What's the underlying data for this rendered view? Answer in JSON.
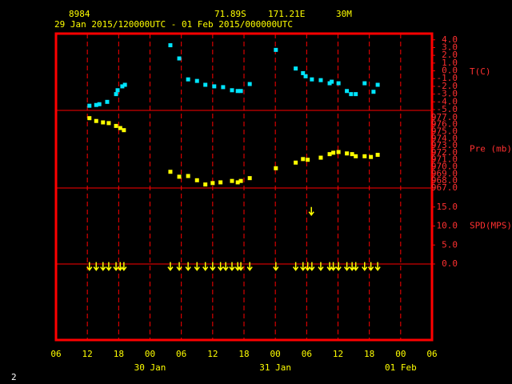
{
  "header": {
    "station": "8984",
    "lat": "71.89S",
    "lon": "171.21E",
    "elev": "30M",
    "period": "29 Jan 2015/120000UTC - 01 Feb 2015/000000UTC",
    "page": "2"
  },
  "x_axis": {
    "xlim": [
      0,
      72
    ],
    "xticks": [
      {
        "value": 0,
        "label": "06"
      },
      {
        "value": 6,
        "label": "12"
      },
      {
        "value": 12,
        "label": "18"
      },
      {
        "value": 18,
        "label": "00"
      },
      {
        "value": 24,
        "label": "06"
      },
      {
        "value": 30,
        "label": "12"
      },
      {
        "value": 36,
        "label": "18"
      },
      {
        "value": 42,
        "label": "00"
      },
      {
        "value": 48,
        "label": "06"
      },
      {
        "value": 54,
        "label": "12"
      },
      {
        "value": 60,
        "label": "18"
      },
      {
        "value": 66,
        "label": "00"
      },
      {
        "value": 72,
        "label": "06"
      }
    ],
    "dates": [
      {
        "value": 18,
        "label": "30 Jan"
      },
      {
        "value": 42,
        "label": "31 Jan"
      },
      {
        "value": 66,
        "label": "01 Feb"
      }
    ]
  },
  "chart_data": [
    {
      "type": "scatter",
      "ylabel": "T(C)",
      "color": "#00e5ff",
      "ylim": [
        -5.1,
        4.8
      ],
      "yticks": [
        {
          "value": 4,
          "label": "4.0"
        },
        {
          "value": 3,
          "label": "3.0"
        },
        {
          "value": 2,
          "label": "2.0"
        },
        {
          "value": 1,
          "label": "1.0"
        },
        {
          "value": 0,
          "label": "0.0"
        },
        {
          "value": -1,
          "label": "-1.0"
        },
        {
          "value": -2,
          "label": "-2.0"
        },
        {
          "value": -3,
          "label": "-3.0"
        },
        {
          "value": -4,
          "label": "-4.0"
        },
        {
          "value": -5,
          "label": "-5.0"
        }
      ],
      "x": [
        6.4,
        7.7,
        8.3,
        9.8,
        11.5,
        11.8,
        12.7,
        13.2,
        21.9,
        23.6,
        25.3,
        27.0,
        28.6,
        30.3,
        32.0,
        33.7,
        34.8,
        35.4,
        37.1,
        42.1,
        45.9,
        47.3,
        47.8,
        49.0,
        50.7,
        52.4,
        52.8,
        54.1,
        55.7,
        56.5,
        57.4,
        59.1,
        60.8,
        61.6
      ],
      "values": [
        -4.5,
        -4.4,
        -4.3,
        -4.0,
        -3.0,
        -2.5,
        -2.0,
        -1.8,
        3.3,
        1.6,
        -1.1,
        -1.3,
        -1.8,
        -2.0,
        -2.1,
        -2.5,
        -2.6,
        -2.6,
        -1.7,
        2.7,
        0.3,
        -0.3,
        -0.7,
        -1.1,
        -1.2,
        -1.6,
        -1.4,
        -1.6,
        -2.6,
        -3.0,
        -3.0,
        -1.6,
        -2.7,
        -1.8
      ]
    },
    {
      "type": "scatter",
      "ylabel": "Pre (mb)",
      "color": "#ffff00",
      "ylim": [
        967,
        978
      ],
      "yticks": [
        {
          "value": 977,
          "label": "977.0"
        },
        {
          "value": 976,
          "label": "976.0"
        },
        {
          "value": 975,
          "label": "975.0"
        },
        {
          "value": 974,
          "label": "974.0"
        },
        {
          "value": 973,
          "label": "973.0"
        },
        {
          "value": 972,
          "label": "972.0"
        },
        {
          "value": 971,
          "label": "971.0"
        },
        {
          "value": 970,
          "label": "970.0"
        },
        {
          "value": 969,
          "label": "969.0"
        },
        {
          "value": 968,
          "label": "968.0"
        },
        {
          "value": 967,
          "label": "967.0"
        }
      ],
      "x": [
        6.4,
        7.7,
        9.0,
        10.1,
        11.5,
        12.3,
        13.0,
        21.9,
        23.6,
        25.3,
        27.0,
        28.6,
        30.0,
        31.5,
        33.7,
        34.8,
        35.4,
        37.1,
        42.1,
        45.9,
        47.3,
        48.2,
        50.7,
        52.4,
        53.1,
        54.1,
        55.7,
        56.7,
        57.4,
        59.1,
        60.3,
        61.6
      ],
      "values": [
        976.9,
        976.5,
        976.3,
        976.2,
        975.8,
        975.5,
        975.2,
        969.3,
        968.6,
        968.7,
        968.1,
        967.5,
        967.7,
        967.8,
        968.0,
        967.8,
        968.0,
        968.4,
        969.8,
        970.6,
        971.1,
        971.0,
        971.3,
        971.8,
        972.0,
        972.1,
        971.9,
        971.8,
        971.5,
        971.5,
        971.4,
        971.7
      ]
    },
    {
      "type": "arrows",
      "ylabel": "SPD(MPS)",
      "color": "#ffff00",
      "ylim": [
        -20,
        20
      ],
      "yticks": [
        {
          "value": 0,
          "label": "0.0"
        },
        {
          "value": 5,
          "label": "5.0"
        },
        {
          "value": 10,
          "label": "10.0"
        },
        {
          "value": 15,
          "label": "15.0"
        }
      ],
      "x": [
        6.4,
        7.7,
        9.0,
        10.1,
        11.5,
        12.3,
        13.0,
        21.9,
        23.6,
        25.3,
        27.0,
        28.6,
        30.0,
        31.5,
        32.5,
        33.7,
        34.8,
        35.4,
        37.1,
        42.1,
        45.9,
        47.3,
        48.2,
        48.9,
        49.0,
        50.7,
        52.4,
        53.1,
        54.1,
        55.7,
        56.7,
        57.4,
        59.1,
        60.3,
        61.6
      ],
      "values": [
        0.5,
        0.5,
        0.5,
        0.5,
        0.5,
        0.5,
        0.5,
        0.5,
        0.5,
        0.5,
        0.5,
        0.5,
        0.5,
        0.5,
        0.5,
        0.5,
        0.5,
        0.5,
        0.5,
        0.5,
        0.5,
        0.5,
        0.5,
        15,
        0.5,
        0.5,
        0.5,
        0.5,
        0.5,
        0.5,
        0.5,
        0.5,
        0.5,
        0.5,
        0.5
      ]
    }
  ]
}
